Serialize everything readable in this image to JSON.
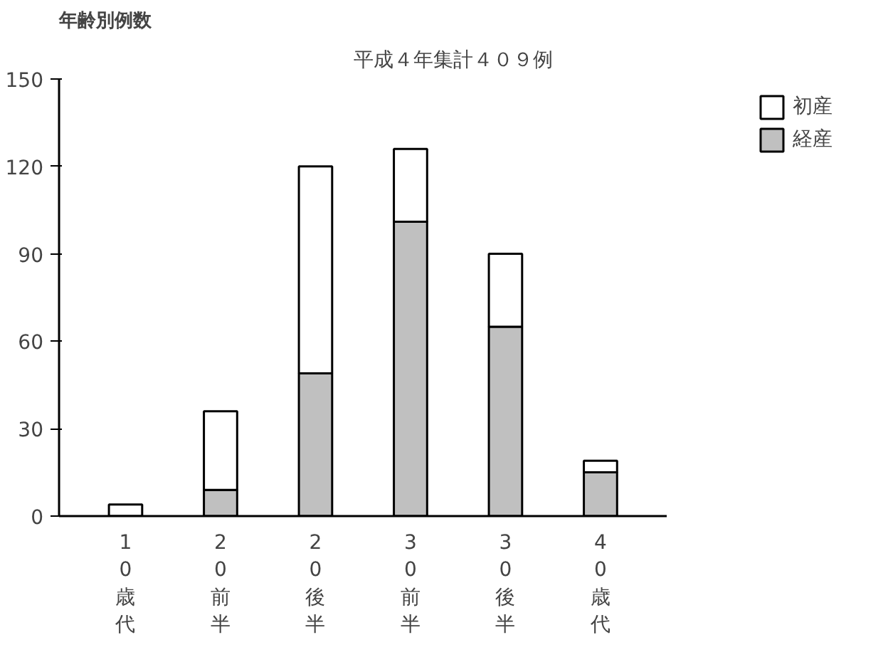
{
  "chart_data": {
    "type": "bar",
    "title": "年齢別例数",
    "subtitle": "平成４年集計４０９例",
    "categories": [
      "10歳代",
      "20前半",
      "20後半",
      "30前半",
      "30後半",
      "40歳代"
    ],
    "stacked": true,
    "series": [
      {
        "name": "経産",
        "color": "#c0c0c0",
        "values": [
          0,
          9,
          49,
          101,
          65,
          15
        ]
      },
      {
        "name": "初産",
        "color": "#ffffff",
        "values": [
          4,
          27,
          71,
          25,
          25,
          4
        ]
      }
    ],
    "ylim": [
      0,
      150
    ],
    "yticks": [
      0,
      30,
      60,
      90,
      120,
      150
    ],
    "grid": false,
    "legend": "top right"
  }
}
